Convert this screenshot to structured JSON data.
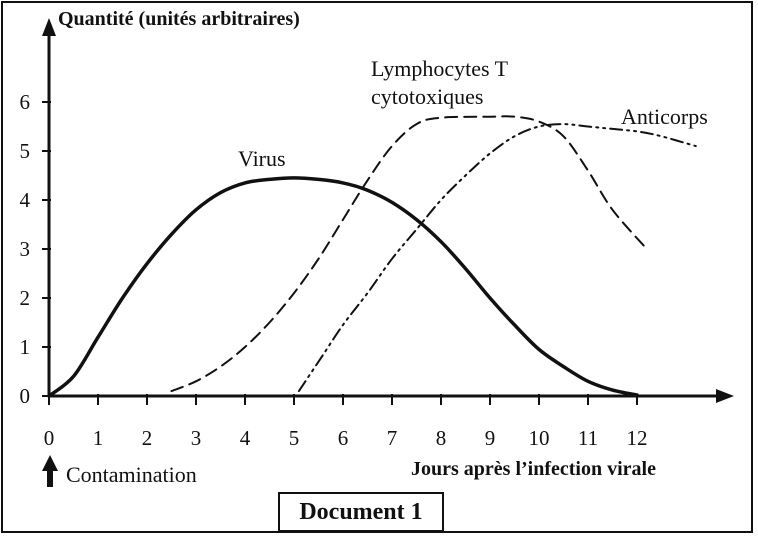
{
  "chart_data": {
    "type": "line",
    "title": "",
    "ylabel": "Quantité (unités arbitraires)",
    "xlabel": "Jours après l’infection virale",
    "xlim": [
      0,
      14
    ],
    "ylim": [
      0,
      7
    ],
    "xticks": [
      0,
      1,
      2,
      3,
      4,
      5,
      6,
      7,
      8,
      9,
      10,
      11,
      12
    ],
    "yticks": [
      0,
      1,
      2,
      3,
      4,
      5,
      6
    ],
    "grid": false,
    "series": [
      {
        "name": "Virus",
        "style": "solid",
        "x": [
          0,
          0.5,
          1,
          1.5,
          2,
          2.5,
          3,
          3.5,
          4,
          4.5,
          5,
          5.5,
          6,
          6.5,
          7,
          7.5,
          8,
          8.5,
          9,
          9.5,
          10,
          10.5,
          11,
          11.5,
          12
        ],
        "y": [
          0,
          0.4,
          1.2,
          2.0,
          2.7,
          3.3,
          3.8,
          4.15,
          4.35,
          4.42,
          4.45,
          4.42,
          4.35,
          4.2,
          3.95,
          3.6,
          3.15,
          2.6,
          2.0,
          1.45,
          0.95,
          0.6,
          0.3,
          0.12,
          0.02
        ]
      },
      {
        "name": "Lymphocytes T cytotoxiques",
        "style": "dashed",
        "x": [
          2.5,
          3,
          3.5,
          4,
          4.5,
          5,
          5.5,
          6,
          6.5,
          7,
          7.5,
          8,
          9,
          9.5,
          10,
          10.5,
          11,
          11.5,
          12.2
        ],
        "y": [
          0.1,
          0.3,
          0.6,
          1.0,
          1.5,
          2.1,
          2.8,
          3.6,
          4.4,
          5.1,
          5.55,
          5.68,
          5.7,
          5.7,
          5.6,
          5.3,
          4.6,
          3.8,
          3.0
        ]
      },
      {
        "name": "Anticorps",
        "style": "dashdot",
        "x": [
          5.1,
          5.5,
          6,
          6.5,
          7,
          7.5,
          8,
          8.5,
          9,
          9.5,
          10,
          10.5,
          11,
          11.5,
          12,
          12.5,
          13.2
        ],
        "y": [
          0.1,
          0.7,
          1.45,
          2.1,
          2.8,
          3.4,
          4.0,
          4.5,
          4.95,
          5.3,
          5.5,
          5.55,
          5.5,
          5.45,
          5.4,
          5.3,
          5.1
        ]
      }
    ]
  },
  "annotations": {
    "contamination": "Contamination"
  },
  "caption": "Document 1"
}
